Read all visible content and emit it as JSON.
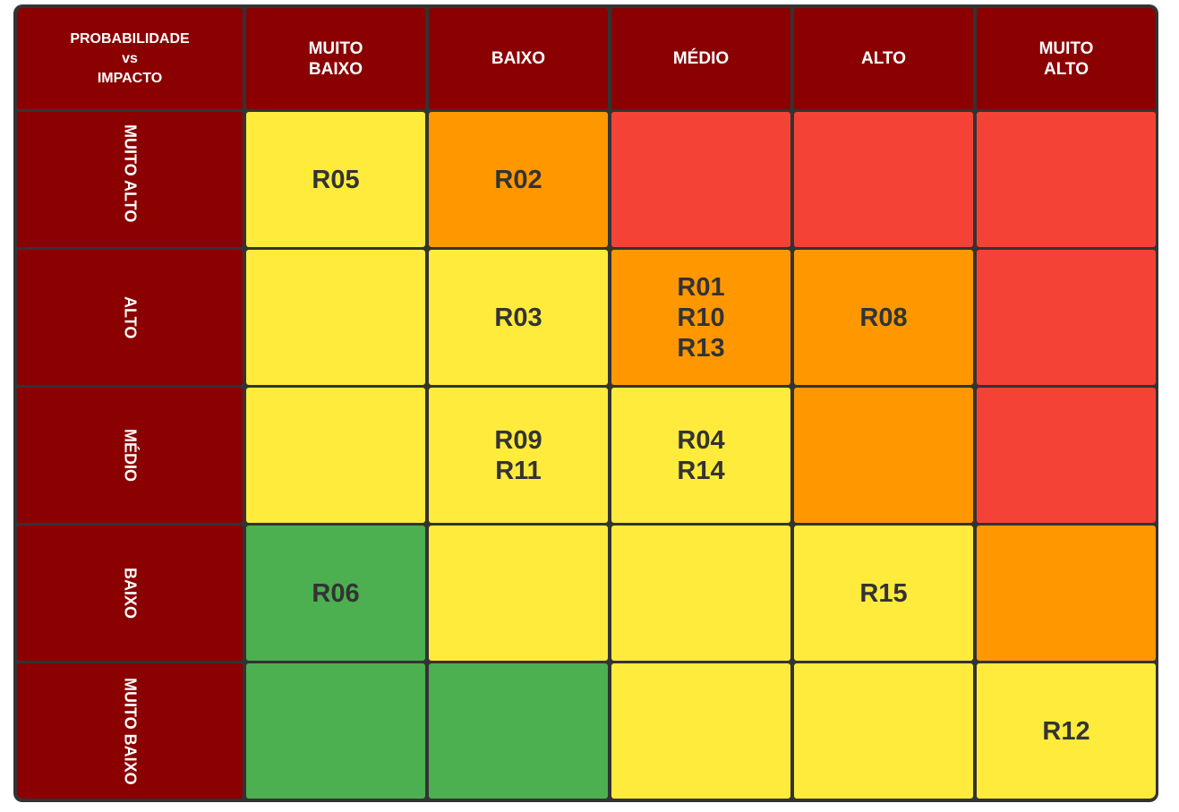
{
  "corner": {
    "line1": "PROBABILIDADE",
    "line2": "vs",
    "line3": "IMPACTO"
  },
  "impact_headers": [
    {
      "line1": "MUITO",
      "line2": "BAIXO"
    },
    {
      "line1": "BAIXO",
      "line2": ""
    },
    {
      "line1": "MÉDIO",
      "line2": ""
    },
    {
      "line1": "ALTO",
      "line2": ""
    },
    {
      "line1": "MUITO",
      "line2": "ALTO"
    }
  ],
  "probability_headers": [
    "MUITO ALTO",
    "ALTO",
    "MÉDIO",
    "BAIXO",
    "MUITO BAIXO"
  ],
  "colors": {
    "header": "#8b0000",
    "yellow": "#ffeb3b",
    "orange": "#ff9800",
    "red": "#f44336",
    "green": "#4caf50",
    "grid": "#333333"
  },
  "rows": [
    {
      "cells": [
        {
          "level": "yellow",
          "risks": [
            "R05"
          ]
        },
        {
          "level": "orange",
          "risks": [
            "R02"
          ]
        },
        {
          "level": "red",
          "risks": []
        },
        {
          "level": "red",
          "risks": []
        },
        {
          "level": "red",
          "risks": []
        }
      ]
    },
    {
      "cells": [
        {
          "level": "yellow",
          "risks": []
        },
        {
          "level": "yellow",
          "risks": [
            "R03"
          ]
        },
        {
          "level": "orange",
          "risks": [
            "R01",
            "R10",
            "R13"
          ]
        },
        {
          "level": "orange",
          "risks": [
            "R08"
          ]
        },
        {
          "level": "red",
          "risks": []
        }
      ]
    },
    {
      "cells": [
        {
          "level": "yellow",
          "risks": []
        },
        {
          "level": "yellow",
          "risks": [
            "R09",
            "R11"
          ]
        },
        {
          "level": "yellow",
          "risks": [
            "R04",
            "R14"
          ]
        },
        {
          "level": "orange",
          "risks": []
        },
        {
          "level": "red",
          "risks": []
        }
      ]
    },
    {
      "cells": [
        {
          "level": "green",
          "risks": [
            "R06"
          ]
        },
        {
          "level": "yellow",
          "risks": []
        },
        {
          "level": "yellow",
          "risks": []
        },
        {
          "level": "yellow",
          "risks": [
            "R15"
          ]
        },
        {
          "level": "orange",
          "risks": []
        }
      ]
    },
    {
      "cells": [
        {
          "level": "green",
          "risks": []
        },
        {
          "level": "green",
          "risks": []
        },
        {
          "level": "yellow",
          "risks": []
        },
        {
          "level": "yellow",
          "risks": []
        },
        {
          "level": "yellow",
          "risks": [
            "R12"
          ]
        }
      ]
    }
  ]
}
